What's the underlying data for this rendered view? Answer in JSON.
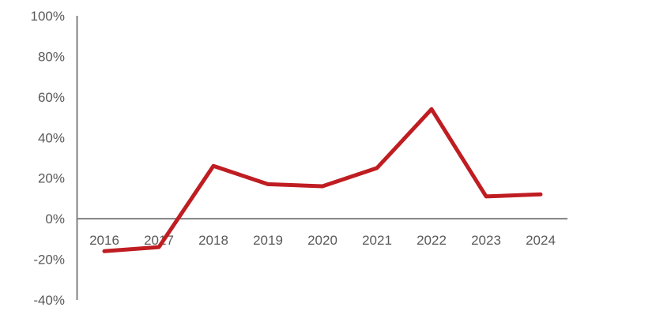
{
  "page": {
    "background": "#ffffff"
  },
  "chart_data": {
    "type": "line",
    "title": "",
    "xlabel": "",
    "ylabel": "",
    "categories": [
      "2016",
      "2017",
      "2018",
      "2019",
      "2020",
      "2021",
      "2022",
      "2023",
      "2024"
    ],
    "values": [
      -16,
      -14,
      26,
      17,
      16,
      25,
      54,
      11,
      12
    ],
    "ylim": [
      -40,
      100
    ],
    "y_ticks": [
      {
        "value": 100,
        "label": "100%"
      },
      {
        "value": 80,
        "label": "80%"
      },
      {
        "value": 60,
        "label": "60%"
      },
      {
        "value": 40,
        "label": "40%"
      },
      {
        "value": 20,
        "label": "20%"
      },
      {
        "value": 0,
        "label": "0%"
      },
      {
        "value": -20,
        "label": "-20%"
      },
      {
        "value": -40,
        "label": "-40%"
      }
    ],
    "grid": false,
    "legend": "none",
    "line_color": "#BF1D22",
    "axis_color": "#808080",
    "label_color": "#595959"
  }
}
